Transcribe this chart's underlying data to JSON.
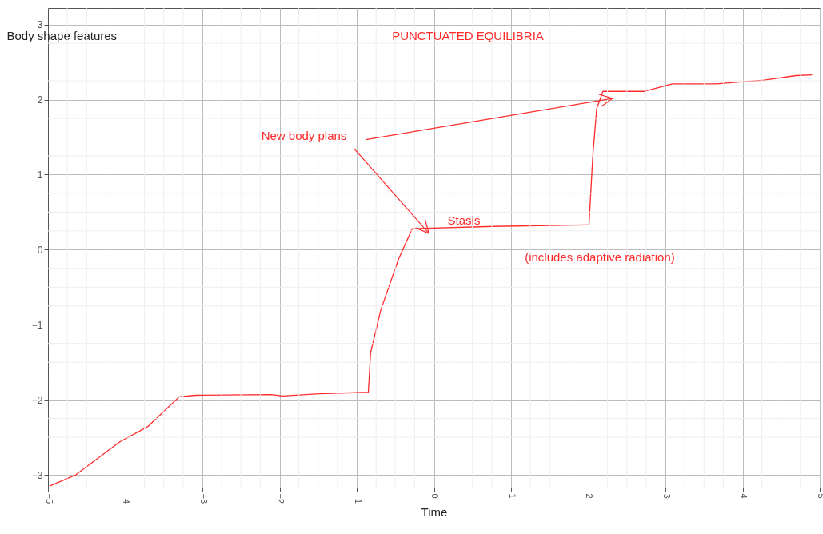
{
  "chart_data": {
    "type": "line",
    "title": "PUNCTUATED EQUILIBRIA",
    "xlabel": "Time",
    "ylabel": "Body shape features",
    "x": [
      -4.98,
      -4.64,
      -4.07,
      -3.71,
      -3.3,
      -3.09,
      -2.11,
      -1.96,
      -1.49,
      -0.85,
      -0.82,
      -0.69,
      -0.46,
      -0.28,
      0.77,
      1.96,
      2.01,
      2.06,
      2.11,
      2.19,
      2.73,
      3.09,
      3.66,
      4.28,
      4.69,
      4.9
    ],
    "series": [
      {
        "color": "#ff2a2a",
        "values": [
          -3.15,
          -3.0,
          -2.56,
          -2.36,
          -1.96,
          -1.94,
          -1.93,
          -1.95,
          -1.92,
          -1.9,
          -1.37,
          -0.81,
          -0.13,
          0.28,
          0.31,
          0.33,
          0.33,
          1.26,
          1.88,
          2.11,
          2.11,
          2.21,
          2.21,
          2.26,
          2.32,
          2.33
        ]
      }
    ],
    "xlim": [
      -5,
      5
    ],
    "xticks": [
      -5,
      -4,
      -3,
      -2,
      -1,
      0,
      1,
      2,
      3,
      4,
      5
    ],
    "ylim": [
      -3.17,
      3.22
    ],
    "yticks": [
      -3,
      -2,
      -1,
      0,
      1,
      2,
      3
    ],
    "annotations": [
      "New body plans",
      "Stasis",
      "(includes adaptive radiation)"
    ],
    "grid": true,
    "marker": "none",
    "line_style": "solid"
  }
}
